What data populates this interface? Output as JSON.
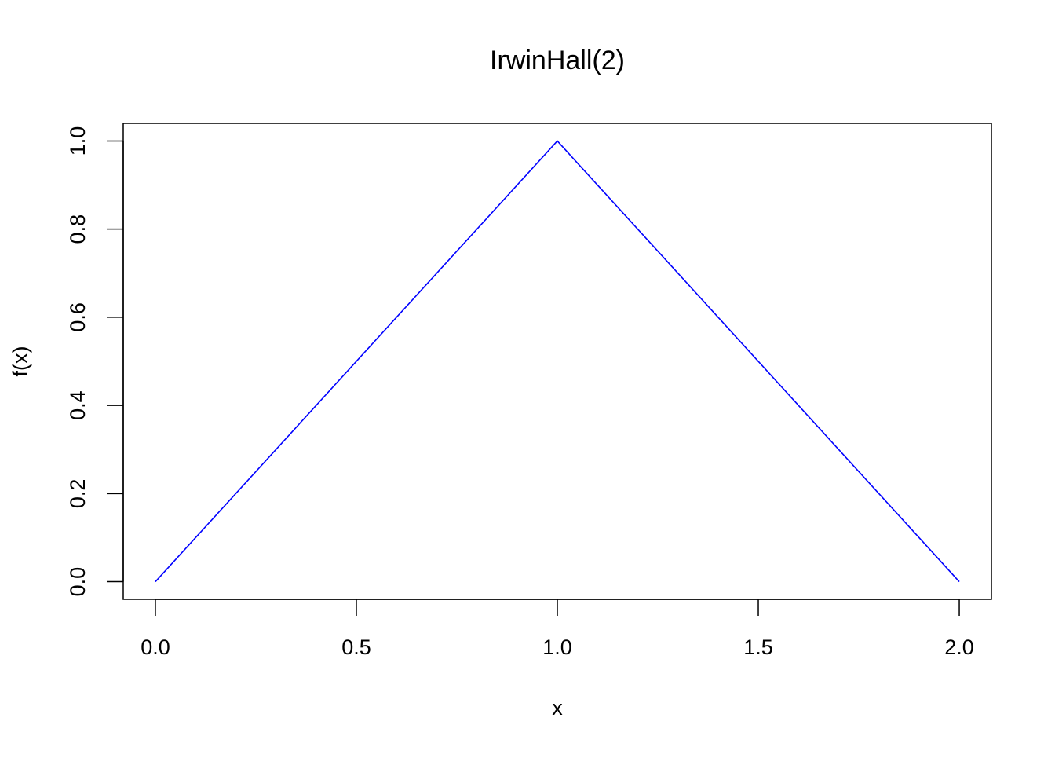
{
  "chart_data": {
    "type": "line",
    "title": "IrwinHall(2)",
    "xlabel": "x",
    "ylabel": "f(x)",
    "xlim": [
      -0.08,
      2.08
    ],
    "ylim": [
      -0.04,
      1.04
    ],
    "xticks": [
      0.0,
      0.5,
      1.0,
      1.5,
      2.0
    ],
    "xtick_labels": [
      "0.0",
      "0.5",
      "1.0",
      "1.5",
      "2.0"
    ],
    "yticks": [
      0.0,
      0.2,
      0.4,
      0.6,
      0.8,
      1.0
    ],
    "ytick_labels": [
      "0.0",
      "0.2",
      "0.4",
      "0.6",
      "0.8",
      "1.0"
    ],
    "grid": false,
    "legend": "none",
    "series": [
      {
        "color": "#0000ff",
        "x": [
          0.0,
          1.0,
          2.0
        ],
        "y": [
          0.0,
          1.0,
          0.0
        ]
      }
    ]
  }
}
